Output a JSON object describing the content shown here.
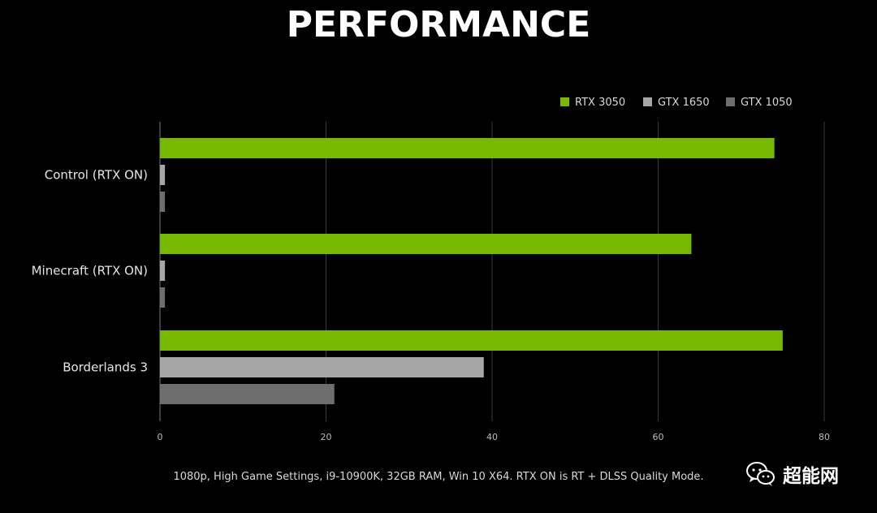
{
  "chart_data": {
    "type": "bar",
    "orientation": "horizontal",
    "title": "PERFORMANCE",
    "categories": [
      "Control (RTX ON)",
      "Minecraft (RTX ON)",
      "Borderlands 3"
    ],
    "series": [
      {
        "name": "RTX 3050",
        "color": "#76b900",
        "values": [
          74,
          64,
          75
        ]
      },
      {
        "name": "GTX 1650",
        "color": "#a6a6a6",
        "values": [
          0.6,
          0.6,
          39
        ]
      },
      {
        "name": "GTX 1050",
        "color": "#6e6e6e",
        "values": [
          0.6,
          0.6,
          21
        ]
      }
    ],
    "xlim": [
      0,
      80
    ],
    "xticks": [
      "0",
      "20",
      "40",
      "60",
      "80"
    ],
    "grid": true,
    "legend_position": "top-right",
    "footnote": "1080p, High Game Settings, i9-10900K, 32GB RAM, Win 10 X64. RTX ON is RT + DLSS Quality Mode."
  },
  "watermark": {
    "text": "超能网",
    "icon": "wechat-icon"
  }
}
